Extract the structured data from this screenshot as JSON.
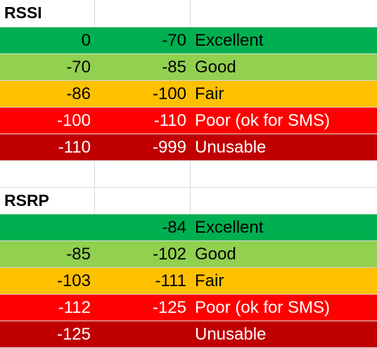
{
  "sections": [
    {
      "title": "RSSI",
      "rows": [
        {
          "from": "0",
          "to": "-70",
          "label": "Excellent",
          "band": "excellent"
        },
        {
          "from": "-70",
          "to": "-85",
          "label": "Good",
          "band": "good"
        },
        {
          "from": "-86",
          "to": "-100",
          "label": "Fair",
          "band": "fair"
        },
        {
          "from": "-100",
          "to": "-110",
          "label": "Poor (ok for SMS)",
          "band": "poor"
        },
        {
          "from": "-110",
          "to": "-999",
          "label": "Unusable",
          "band": "unusable"
        }
      ]
    },
    {
      "title": "RSRP",
      "rows": [
        {
          "from": "",
          "to": "-84",
          "label": "Excellent",
          "band": "excellent"
        },
        {
          "from": "-85",
          "to": "-102",
          "label": "Good",
          "band": "good"
        },
        {
          "from": "-103",
          "to": "-111",
          "label": "Fair",
          "band": "fair"
        },
        {
          "from": "-112",
          "to": "-125",
          "label": "Poor (ok for SMS)",
          "band": "poor"
        },
        {
          "from": "-125",
          "to": "",
          "label": "Unusable",
          "band": "unusable"
        }
      ]
    }
  ],
  "colors": {
    "excellent": "#00b050",
    "good": "#92d050",
    "fair": "#ffc000",
    "poor": "#ff0000",
    "unusable": "#c00000",
    "gridline": "#d9d9d9"
  }
}
